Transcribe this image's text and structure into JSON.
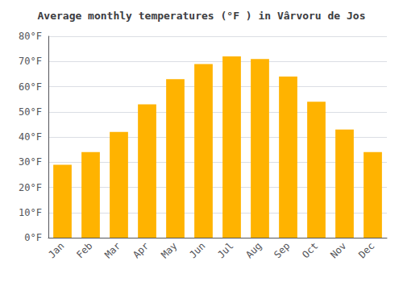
{
  "chart_data": {
    "type": "bar",
    "title": "Average monthly temperatures (°F ) in Vârvoru de Jos",
    "categories": [
      "Jan",
      "Feb",
      "Mar",
      "Apr",
      "May",
      "Jun",
      "Jul",
      "Aug",
      "Sep",
      "Oct",
      "Nov",
      "Dec"
    ],
    "values": [
      29,
      34,
      42,
      53,
      63,
      69,
      72,
      71,
      64,
      54,
      43,
      34
    ],
    "color": "#FFB300",
    "ylim": [
      0,
      80
    ],
    "yticks": [
      {
        "value": 0,
        "label": "0°F"
      },
      {
        "value": 10,
        "label": "10°F"
      },
      {
        "value": 20,
        "label": "20°F"
      },
      {
        "value": 30,
        "label": "30°F"
      },
      {
        "value": 40,
        "label": "40°F"
      },
      {
        "value": 50,
        "label": "50°F"
      },
      {
        "value": 60,
        "label": "60°F"
      },
      {
        "value": 70,
        "label": "70°F"
      },
      {
        "value": 80,
        "label": "80°F"
      }
    ],
    "grid": true
  }
}
